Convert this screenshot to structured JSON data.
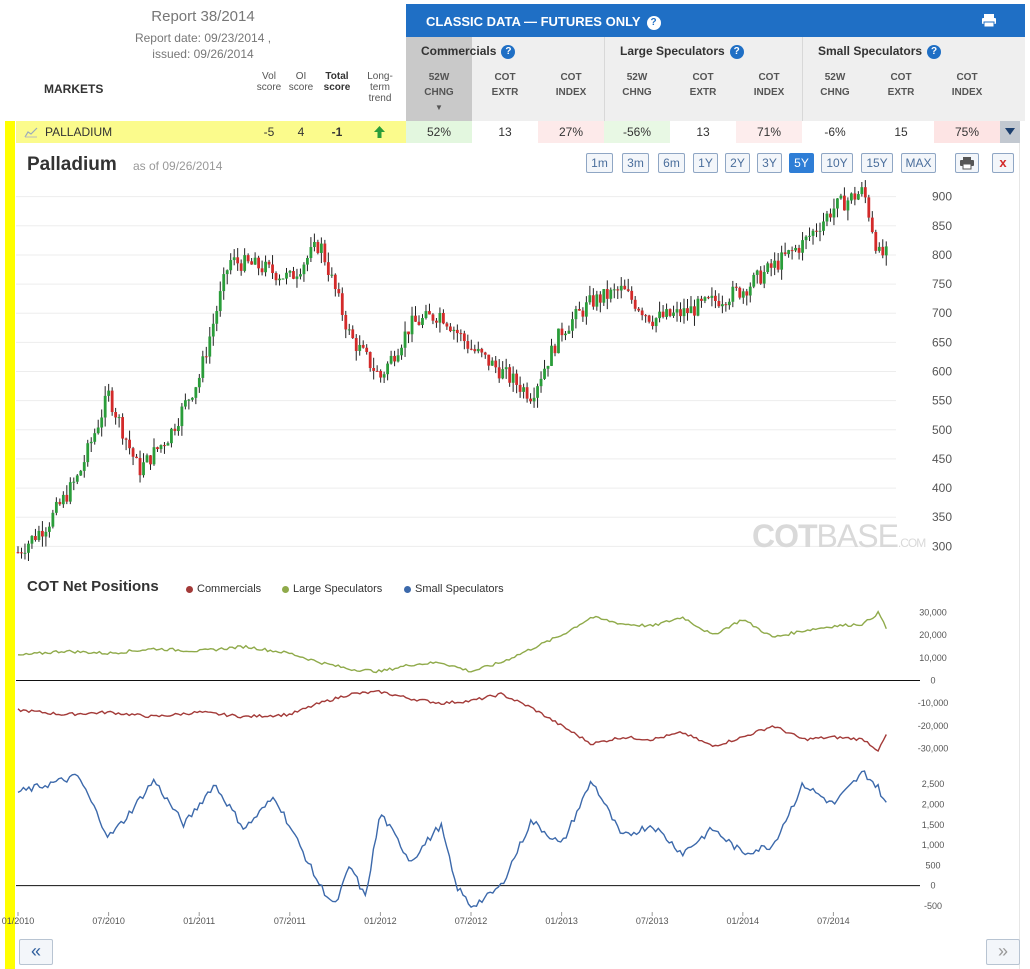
{
  "report": {
    "title": "Report 38/2014",
    "report_date": "Report date: 09/23/2014 ,",
    "issued": "issued: 09/26/2014"
  },
  "markets_header": "MARKETS",
  "score_headers": {
    "vol": [
      "Vol",
      "score"
    ],
    "oi": [
      "OI",
      "score"
    ],
    "total": [
      "Total",
      "score"
    ],
    "trend": [
      "Long-",
      "term",
      "trend"
    ]
  },
  "classic": {
    "title": "CLASSIC DATA — FUTURES ONLY",
    "help": "?"
  },
  "groups": [
    "Commercials",
    "Large Speculators",
    "Small Speculators"
  ],
  "subcols": [
    [
      "52W",
      "CHNG"
    ],
    [
      "COT",
      "EXTR"
    ],
    [
      "COT",
      "INDEX"
    ],
    [
      "52W",
      "CHNG"
    ],
    [
      "COT",
      "EXTR"
    ],
    [
      "COT",
      "INDEX"
    ],
    [
      "52W",
      "CHNG"
    ],
    [
      "COT",
      "EXTR"
    ],
    [
      "COT",
      "INDEX"
    ]
  ],
  "market_row": {
    "name": "PALLADIUM",
    "vol": "-5",
    "oi": "4",
    "total": "-1",
    "trend": "up",
    "values": [
      "52%",
      "13",
      "27%",
      "-56%",
      "13",
      "71%",
      "-6%",
      "15",
      "75%"
    ]
  },
  "chart_title": "Palladium",
  "chart_asof": "as of 09/26/2014",
  "ranges": [
    "1m",
    "3m",
    "6m",
    "1Y",
    "2Y",
    "3Y",
    "5Y",
    "10Y",
    "15Y",
    "MAX"
  ],
  "active_range": "5Y",
  "watermark": {
    "bold": "COT",
    "light": "BASE",
    "tld": ".COM"
  },
  "cot_title": "COT Net Positions",
  "colors": {
    "commercials": "#a33a38",
    "large": "#8faa4a",
    "small": "#3c69ab",
    "up": "#2a9d3a",
    "down": "#d32a2a",
    "yellow": "#ffff00",
    "header_blue": "#1f6fc5"
  },
  "nav": {
    "prev": "«",
    "next": "»"
  },
  "chart_data": [
    {
      "type": "candlestick",
      "title": "Palladium",
      "ylim": [
        280,
        920
      ],
      "yticks": [
        300,
        350,
        400,
        450,
        500,
        550,
        600,
        650,
        700,
        750,
        800,
        850,
        900
      ],
      "x_labels": [
        "01/2010",
        "07/2010",
        "01/2011",
        "07/2011",
        "01/2012",
        "07/2012",
        "01/2013",
        "07/2013",
        "01/2014",
        "07/2014"
      ],
      "anchors": {
        "month": [
          0,
          2,
          4,
          6,
          8,
          10,
          12,
          14,
          16,
          18,
          20,
          22,
          24,
          26,
          28,
          30,
          32,
          34,
          36,
          38,
          40,
          42,
          44,
          46,
          48,
          50,
          52,
          54,
          56,
          57
        ],
        "price": [
          290,
          340,
          420,
          560,
          430,
          490,
          590,
          790,
          780,
          760,
          820,
          660,
          590,
          680,
          700,
          640,
          600,
          560,
          670,
          720,
          740,
          690,
          700,
          720,
          740,
          780,
          820,
          880,
          910,
          800
        ]
      }
    },
    {
      "type": "line",
      "title": "COT Net Positions",
      "series": [
        {
          "name": "Commercials",
          "months": [
            0,
            3,
            6,
            9,
            12,
            15,
            18,
            20,
            22,
            24,
            26,
            28,
            30,
            32,
            34,
            36,
            38,
            40,
            42,
            44,
            46,
            48,
            50,
            52,
            54,
            56,
            57,
            57.5
          ],
          "values": [
            -13000,
            -15000,
            -14000,
            -16000,
            -14000,
            -16000,
            -15000,
            -10000,
            -6000,
            -5000,
            -8000,
            -10000,
            -9000,
            -6000,
            -12000,
            -20000,
            -28000,
            -25000,
            -26000,
            -23000,
            -29000,
            -25000,
            -20000,
            -26000,
            -25000,
            -26000,
            -31000,
            -24000
          ]
        },
        {
          "name": "Large Speculators",
          "months": [
            0,
            3,
            6,
            9,
            12,
            15,
            18,
            20,
            22,
            24,
            26,
            28,
            30,
            32,
            34,
            36,
            38,
            40,
            42,
            44,
            46,
            48,
            50,
            52,
            54,
            56,
            57,
            57.5
          ],
          "values": [
            11000,
            13000,
            12000,
            14000,
            13000,
            15000,
            12000,
            8000,
            5000,
            4000,
            7000,
            8000,
            4000,
            8000,
            14000,
            20000,
            28000,
            25000,
            24000,
            28000,
            20000,
            27000,
            19000,
            22000,
            24000,
            25000,
            30000,
            23000
          ]
        },
        {
          "name": "Small Speculators",
          "months": [
            0,
            2,
            4,
            6,
            7,
            9,
            11,
            13,
            15,
            17,
            20,
            21,
            22,
            23,
            24,
            26,
            28,
            29,
            30,
            31,
            32,
            34,
            36,
            38,
            40,
            42,
            44,
            46,
            48,
            50,
            52,
            54,
            55,
            56,
            57,
            57.5
          ],
          "values": [
            2300,
            2500,
            2700,
            1200,
            1600,
            2600,
            1500,
            2500,
            1400,
            2200,
            0,
            -500,
            500,
            -300,
            1800,
            600,
            1500,
            0,
            -500,
            -300,
            0,
            1600,
            1000,
            2600,
            1200,
            1500,
            800,
            1400,
            800,
            1000,
            2500,
            2000,
            2400,
            2800,
            2400,
            2000
          ]
        }
      ]
    }
  ]
}
